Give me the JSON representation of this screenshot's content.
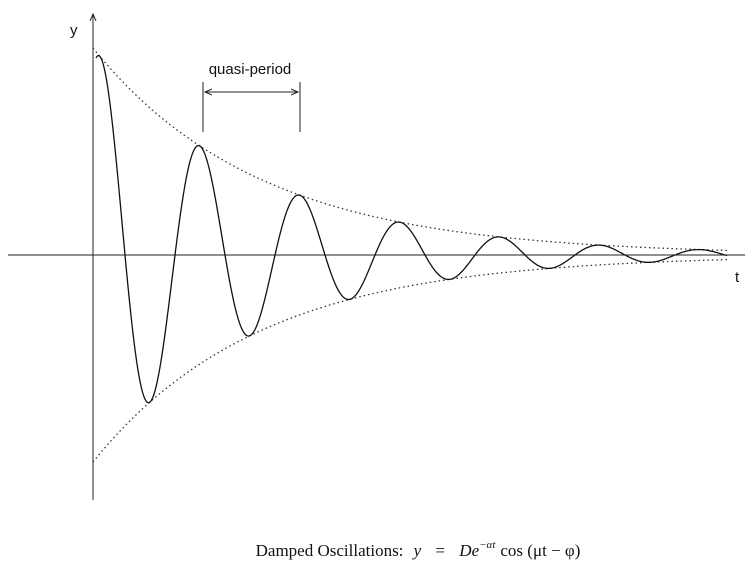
{
  "axes": {
    "y_label": "y",
    "x_label": "t"
  },
  "annotation": "quasi-period",
  "caption": {
    "label": "Damped Oscillations:",
    "lhs": "y",
    "equals": "=",
    "coefficient": "De",
    "exponent": "−αt",
    "function": "cos (μt − φ)"
  }
}
